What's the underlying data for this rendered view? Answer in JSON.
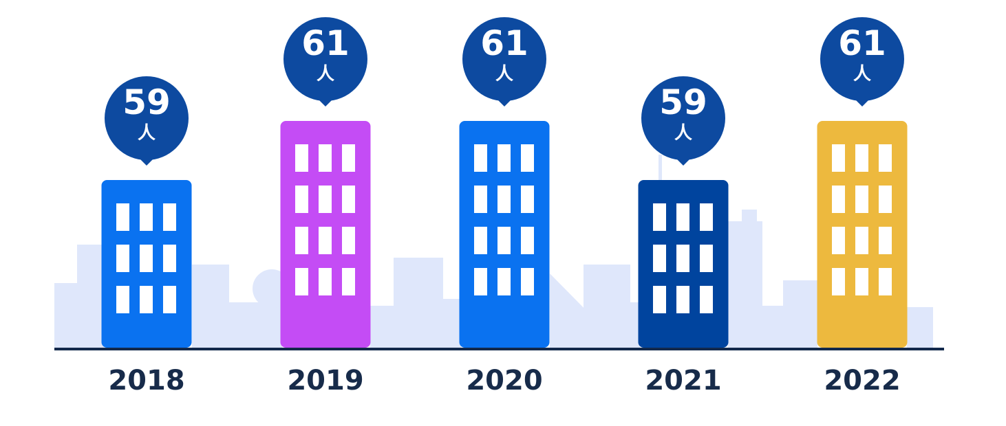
{
  "chart_data": {
    "type": "bar",
    "categories": [
      "2018",
      "2019",
      "2020",
      "2021",
      "2022"
    ],
    "values": [
      59,
      61,
      61,
      59,
      61
    ],
    "unit": "人",
    "colors": [
      "#0a72f0",
      "#c44cf5",
      "#0a72f0",
      "#00449e",
      "#edb93e"
    ]
  }
}
